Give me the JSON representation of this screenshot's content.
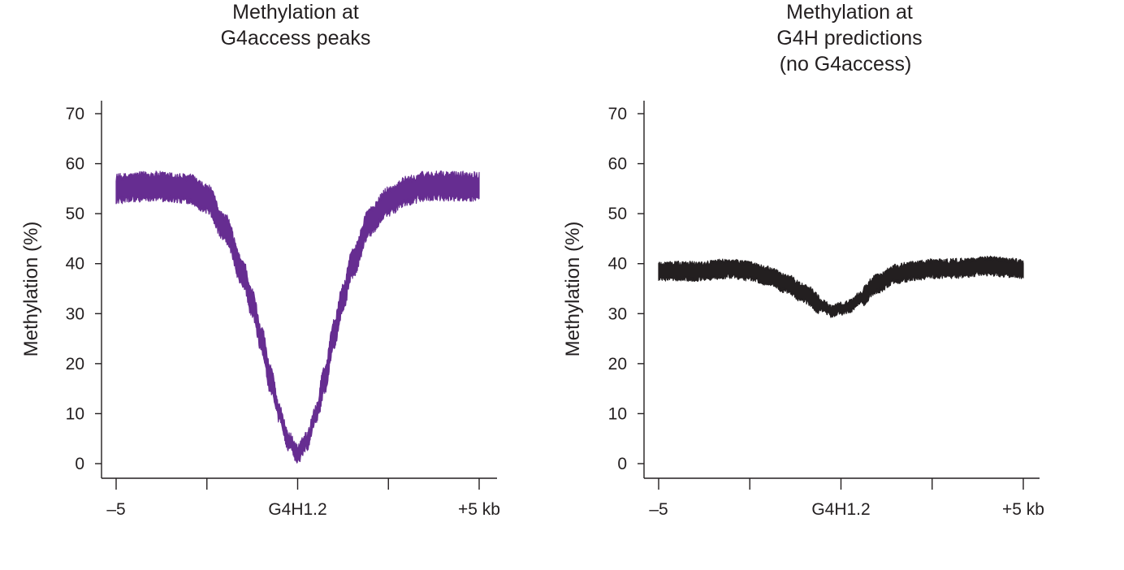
{
  "chart_data": [
    {
      "type": "line",
      "title": [
        "Methylation at",
        "G4access peaks"
      ],
      "ylabel": "Methylation (%)",
      "xlabel": "",
      "ylim": [
        0,
        70
      ],
      "yticks": [
        0,
        10,
        20,
        30,
        40,
        50,
        60,
        70
      ],
      "xlim": [
        -5,
        5
      ],
      "xtick_positions": [
        -5,
        -2.5,
        0,
        2.5,
        5
      ],
      "xtick_labels": [
        "–5",
        "",
        "G4H1.2",
        "",
        "+5 kb"
      ],
      "grid": false,
      "color": "#662d91",
      "series": [
        {
          "name": "G4access peaks",
          "band_width": 4.5,
          "x": [
            -5,
            -4,
            -3,
            -2.5,
            -2,
            -1.5,
            -1.25,
            -1,
            -0.75,
            -0.5,
            -0.25,
            0,
            0.25,
            0.5,
            0.75,
            1,
            1.25,
            1.5,
            2,
            2.5,
            3,
            3.5,
            4,
            5
          ],
          "values": [
            55,
            55.5,
            55,
            53,
            47,
            38,
            32,
            25,
            17,
            10,
            4.5,
            2,
            4.5,
            10,
            17,
            26,
            33,
            40,
            48.5,
            52.5,
            54.5,
            55.5,
            55.5,
            55.5
          ]
        }
      ]
    },
    {
      "type": "line",
      "title": [
        "Methylation at",
        "G4H predictions",
        "(no G4access)"
      ],
      "ylabel": "Methylation (%)",
      "xlabel": "",
      "ylim": [
        0,
        70
      ],
      "yticks": [
        0,
        10,
        20,
        30,
        40,
        50,
        60,
        70
      ],
      "xlim": [
        -5,
        5
      ],
      "xtick_positions": [
        -5,
        -2.5,
        0,
        2.5,
        5
      ],
      "xtick_labels": [
        "–5",
        "",
        "G4H1.2",
        "",
        "+5 kb"
      ],
      "grid": false,
      "color": "#231f20",
      "series": [
        {
          "name": "G4H predictions (no G4access)",
          "band_width": 3,
          "x": [
            -5,
            -4,
            -3,
            -2.5,
            -2,
            -1.5,
            -1,
            -0.5,
            -0.25,
            0,
            0.25,
            0.5,
            1,
            1.5,
            2,
            2.5,
            3,
            4,
            5
          ],
          "values": [
            38.5,
            38.5,
            39,
            38.5,
            37.5,
            36,
            34,
            31.5,
            30.5,
            31,
            31.5,
            33,
            36,
            38,
            38.5,
            39,
            39,
            39.5,
            39
          ]
        }
      ]
    }
  ]
}
